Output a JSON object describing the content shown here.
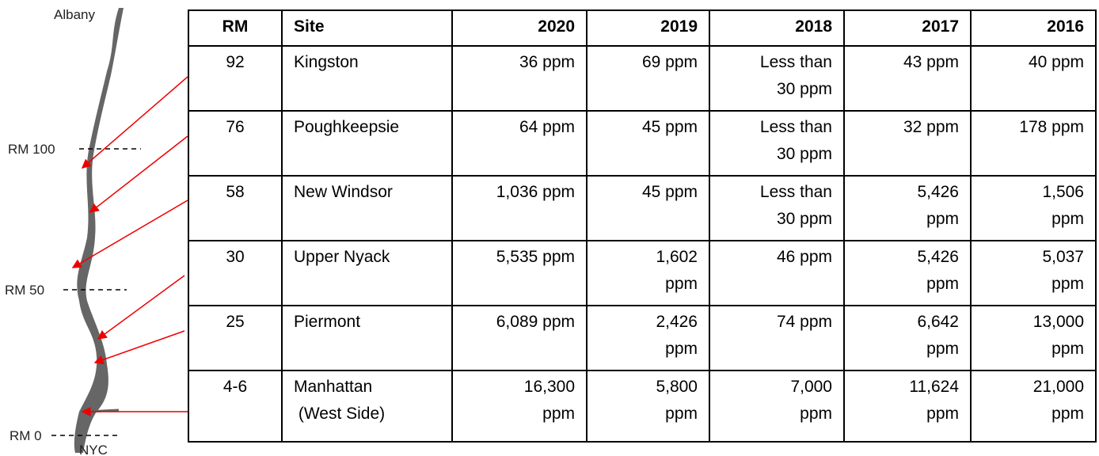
{
  "map": {
    "labels": {
      "top": "Albany",
      "rm100": "RM 100",
      "rm50": "RM 50",
      "rm0": "RM 0",
      "bottom": "NYC"
    }
  },
  "table": {
    "header": [
      "RM",
      "Site",
      "2020",
      "2019",
      "2018",
      "2017",
      "2016"
    ],
    "rows": [
      [
        [
          "92"
        ],
        [
          "Kingston"
        ],
        [
          "36 ppm"
        ],
        [
          "69 ppm"
        ],
        [
          "Less than",
          "30 ppm"
        ],
        [
          "43 ppm"
        ],
        [
          "40 ppm"
        ]
      ],
      [
        [
          "76"
        ],
        [
          "Poughkeepsie"
        ],
        [
          "64 ppm"
        ],
        [
          "45 ppm"
        ],
        [
          "Less than",
          "30 ppm"
        ],
        [
          "32 ppm"
        ],
        [
          "178 ppm"
        ]
      ],
      [
        [
          "58"
        ],
        [
          "New Windsor"
        ],
        [
          "1,036 ppm"
        ],
        [
          "45 ppm"
        ],
        [
          "Less than",
          "30 ppm"
        ],
        [
          "5,426",
          "ppm"
        ],
        [
          "1,506",
          "ppm"
        ]
      ],
      [
        [
          "30"
        ],
        [
          "Upper Nyack"
        ],
        [
          "5,535 ppm"
        ],
        [
          "1,602",
          "ppm"
        ],
        [
          "46 ppm"
        ],
        [
          "5,426",
          "ppm"
        ],
        [
          "5,037",
          "ppm"
        ]
      ],
      [
        [
          "25"
        ],
        [
          "Piermont"
        ],
        [
          "6,089 ppm"
        ],
        [
          "2,426",
          "ppm"
        ],
        [
          "74 ppm"
        ],
        [
          "6,642",
          "ppm"
        ],
        [
          "13,000",
          "ppm"
        ]
      ],
      [
        [
          "4-6"
        ],
        [
          "Manhattan",
          " (West Side)"
        ],
        [
          "16,300",
          "ppm"
        ],
        [
          "5,800",
          "ppm"
        ],
        [
          "7,000",
          "ppm"
        ],
        [
          "11,624",
          "ppm"
        ],
        [
          "21,000",
          "ppm"
        ]
      ]
    ]
  }
}
